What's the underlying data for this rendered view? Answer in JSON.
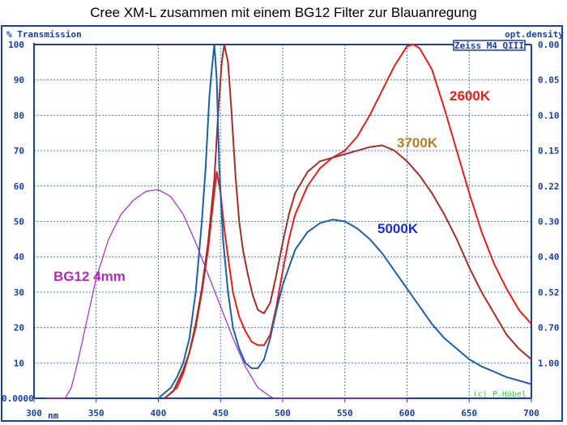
{
  "chart_data": {
    "type": "line",
    "title": "Cree XM-L  zusammen mit einem BG12 Filter  zur Blauanregung",
    "ylabel": "%  Transmission",
    "ylabel_right": "opt.density",
    "xunit": "nm",
    "xlim": [
      300,
      700
    ],
    "ylim": [
      0,
      100
    ],
    "x_ticks": [
      "300",
      "350",
      "400",
      "450",
      "500",
      "550",
      "600",
      "650",
      "700"
    ],
    "y_ticks": [
      "0.0000",
      "10",
      "20",
      "30",
      "40",
      "50",
      "60",
      "70",
      "80",
      "90",
      "100"
    ],
    "y_right_ticks": [
      "1.00",
      "0.70",
      "0.52",
      "0.40",
      "0.30",
      "0.22",
      "0.15",
      "0.10",
      "0.05",
      "0.00"
    ],
    "instrument_label": "Zeiss M4 QIII",
    "copyright": "(c) P.Höbel",
    "grid": true,
    "series": [
      {
        "name": "2600K",
        "color": "#e0201c",
        "points": [
          [
            405,
            0
          ],
          [
            410,
            1.5
          ],
          [
            415,
            3
          ],
          [
            420,
            7
          ],
          [
            425,
            13
          ],
          [
            430,
            20
          ],
          [
            435,
            30
          ],
          [
            440,
            42
          ],
          [
            444,
            55
          ],
          [
            447,
            64
          ],
          [
            450,
            58
          ],
          [
            453,
            48
          ],
          [
            456,
            40
          ],
          [
            460,
            30
          ],
          [
            465,
            23
          ],
          [
            470,
            19
          ],
          [
            475,
            16
          ],
          [
            480,
            15
          ],
          [
            485,
            15
          ],
          [
            490,
            18
          ],
          [
            495,
            26
          ],
          [
            500,
            36
          ],
          [
            505,
            45
          ],
          [
            510,
            52
          ],
          [
            520,
            60
          ],
          [
            530,
            65
          ],
          [
            540,
            68
          ],
          [
            550,
            70
          ],
          [
            560,
            74
          ],
          [
            570,
            80
          ],
          [
            580,
            87
          ],
          [
            590,
            94
          ],
          [
            600,
            99.5
          ],
          [
            605,
            100
          ],
          [
            610,
            99
          ],
          [
            620,
            93
          ],
          [
            630,
            82
          ],
          [
            640,
            70
          ],
          [
            650,
            58
          ],
          [
            660,
            47
          ],
          [
            670,
            38
          ],
          [
            680,
            31
          ],
          [
            690,
            25
          ],
          [
            700,
            21
          ]
        ]
      },
      {
        "name": "3700K",
        "color": "#a0302a",
        "label_color": "#b87a2a",
        "points": [
          [
            405,
            0
          ],
          [
            412,
            2
          ],
          [
            420,
            8
          ],
          [
            425,
            13
          ],
          [
            430,
            21
          ],
          [
            435,
            31
          ],
          [
            440,
            44
          ],
          [
            445,
            62
          ],
          [
            448,
            80
          ],
          [
            451,
            95
          ],
          [
            453,
            100
          ],
          [
            456,
            95
          ],
          [
            459,
            80
          ],
          [
            462,
            63
          ],
          [
            465,
            50
          ],
          [
            468,
            42
          ],
          [
            472,
            35
          ],
          [
            476,
            29
          ],
          [
            480,
            25
          ],
          [
            485,
            24
          ],
          [
            490,
            27
          ],
          [
            495,
            35
          ],
          [
            500,
            44
          ],
          [
            505,
            52
          ],
          [
            510,
            58
          ],
          [
            520,
            64
          ],
          [
            530,
            67
          ],
          [
            540,
            68
          ],
          [
            550,
            69
          ],
          [
            560,
            70
          ],
          [
            570,
            71
          ],
          [
            580,
            71.5
          ],
          [
            590,
            70
          ],
          [
            600,
            67
          ],
          [
            610,
            63
          ],
          [
            620,
            58
          ],
          [
            630,
            52
          ],
          [
            640,
            45
          ],
          [
            650,
            37
          ],
          [
            660,
            30
          ],
          [
            670,
            24
          ],
          [
            680,
            18
          ],
          [
            690,
            14
          ],
          [
            700,
            11
          ]
        ]
      },
      {
        "name": "5000K",
        "color": "#1f5fa8",
        "label_color": "#1a2fd0",
        "points": [
          [
            400,
            0
          ],
          [
            405,
            1.5
          ],
          [
            410,
            3
          ],
          [
            415,
            6
          ],
          [
            420,
            10
          ],
          [
            425,
            17
          ],
          [
            430,
            30
          ],
          [
            435,
            50
          ],
          [
            438,
            65
          ],
          [
            441,
            85
          ],
          [
            443,
            93
          ],
          [
            445,
            100
          ],
          [
            447,
            90
          ],
          [
            449,
            65
          ],
          [
            452,
            45
          ],
          [
            456,
            30
          ],
          [
            460,
            20
          ],
          [
            465,
            14
          ],
          [
            470,
            10
          ],
          [
            475,
            8.5
          ],
          [
            480,
            8.5
          ],
          [
            485,
            11
          ],
          [
            490,
            17
          ],
          [
            495,
            25
          ],
          [
            500,
            32
          ],
          [
            510,
            42
          ],
          [
            520,
            47
          ],
          [
            530,
            49.5
          ],
          [
            540,
            50.5
          ],
          [
            550,
            50
          ],
          [
            560,
            48
          ],
          [
            570,
            45
          ],
          [
            580,
            41
          ],
          [
            590,
            36
          ],
          [
            600,
            31
          ],
          [
            610,
            26
          ],
          [
            620,
            21
          ],
          [
            630,
            17
          ],
          [
            640,
            14
          ],
          [
            650,
            11
          ],
          [
            660,
            9
          ],
          [
            670,
            7.5
          ],
          [
            680,
            6
          ],
          [
            690,
            5
          ],
          [
            700,
            4
          ]
        ]
      },
      {
        "name": "BG12 4mm",
        "color": "#9a2fd0",
        "label_color": "#b030b0",
        "points": [
          [
            310,
            0
          ],
          [
            325,
            0
          ],
          [
            330,
            3
          ],
          [
            335,
            10
          ],
          [
            340,
            18
          ],
          [
            345,
            26
          ],
          [
            350,
            34
          ],
          [
            360,
            45
          ],
          [
            370,
            52
          ],
          [
            380,
            56
          ],
          [
            390,
            58.5
          ],
          [
            400,
            59
          ],
          [
            410,
            57
          ],
          [
            420,
            52
          ],
          [
            430,
            44
          ],
          [
            440,
            35
          ],
          [
            450,
            26
          ],
          [
            460,
            17
          ],
          [
            470,
            9
          ],
          [
            480,
            3
          ],
          [
            490,
            0.5
          ],
          [
            493,
            0
          ],
          [
            600,
            0
          ]
        ]
      }
    ]
  }
}
